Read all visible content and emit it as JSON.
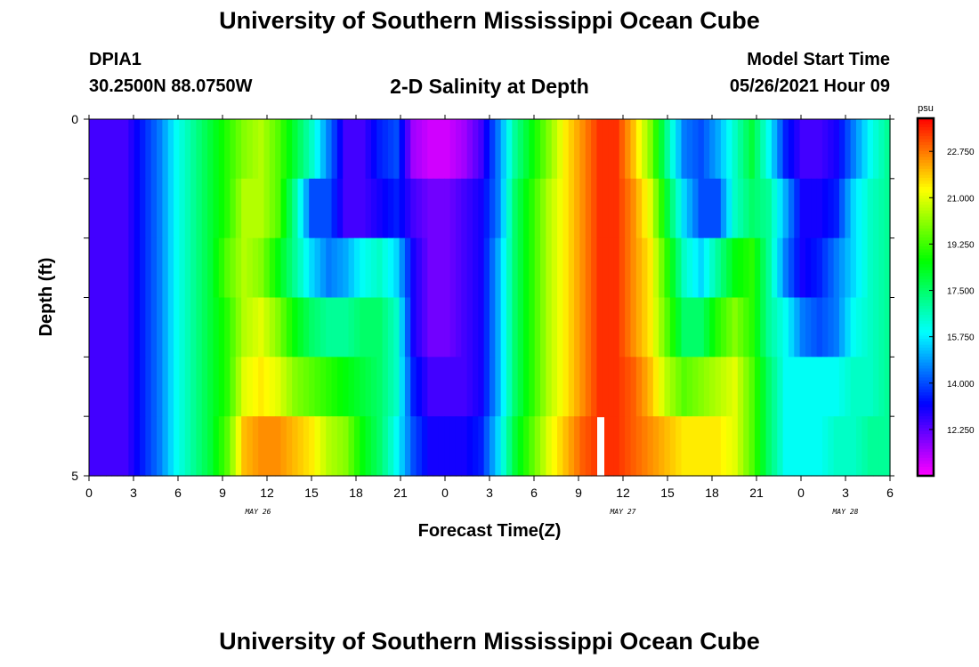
{
  "header": {
    "title": "University of Southern Mississippi Ocean Cube",
    "station": "DPIA1",
    "coords": "30.2500N  88.0750W",
    "subtitle": "2-D Salinity at Depth",
    "model_start_label": "Model Start Time",
    "model_start_value": "05/26/2021 Hour 09"
  },
  "footer": {
    "title": "University of Southern Mississippi Ocean Cube"
  },
  "chart_data": {
    "type": "heatmap",
    "xlabel": "Forecast Time(Z)",
    "ylabel": "Depth (ft)",
    "x_tick_labels": [
      "0",
      "3",
      "6",
      "9",
      "12",
      "15",
      "18",
      "21",
      "0",
      "3",
      "6",
      "9",
      "12",
      "15",
      "18",
      "21",
      "0",
      "3",
      "6"
    ],
    "day_labels": [
      "MAY 26",
      "MAY 27",
      "MAY 28"
    ],
    "y_tick_labels": [
      "0",
      "5"
    ],
    "ylim": [
      0,
      5
    ],
    "colorbar": {
      "unit": "psu",
      "range": [
        10.5,
        24.0
      ],
      "tick_labels": [
        "22.750",
        "21.000",
        "19.250",
        "17.500",
        "15.750",
        "14.000",
        "12.250"
      ],
      "tick_values": [
        22.75,
        21.0,
        19.25,
        17.5,
        15.75,
        14.0,
        12.25
      ]
    },
    "x_hours_step": 3,
    "depth_layers": 5,
    "rows_salinity": [
      [
        12.5,
        12.5,
        12.5,
        13.5,
        14.5,
        16.0,
        17.0,
        18.0,
        19.0,
        20.0,
        20.5,
        19.5,
        18.0,
        16.5,
        14.5,
        12.5,
        12.5,
        13.5,
        14.0,
        11.5,
        11.0,
        11.0,
        11.5,
        12.5,
        14.5,
        17.0,
        18.5,
        20.0,
        21.5,
        22.5,
        23.5,
        23.5,
        22.0,
        20.0,
        17.0,
        14.5,
        14.0,
        15.0,
        16.5,
        18.0,
        16.0,
        13.5,
        12.5,
        12.5,
        13.0,
        14.5,
        16.0,
        17.0
      ],
      [
        12.5,
        12.5,
        12.5,
        13.5,
        14.5,
        16.0,
        17.0,
        18.0,
        19.0,
        20.5,
        20.5,
        19.5,
        17.0,
        14.0,
        14.0,
        12.5,
        12.5,
        13.0,
        13.5,
        12.5,
        12.0,
        12.0,
        12.5,
        13.0,
        14.5,
        17.5,
        19.0,
        20.5,
        21.5,
        22.5,
        23.5,
        23.5,
        22.5,
        21.0,
        18.0,
        15.5,
        14.0,
        14.0,
        16.5,
        17.5,
        17.0,
        15.0,
        13.0,
        13.0,
        13.5,
        15.5,
        16.5,
        17.0
      ],
      [
        12.5,
        12.5,
        12.5,
        13.5,
        14.5,
        16.0,
        17.0,
        18.0,
        19.5,
        20.5,
        20.0,
        18.5,
        17.0,
        15.5,
        14.5,
        15.0,
        16.0,
        16.5,
        15.5,
        13.0,
        12.0,
        12.0,
        12.5,
        13.0,
        15.0,
        17.5,
        19.0,
        20.5,
        21.5,
        22.5,
        23.5,
        23.5,
        22.5,
        21.5,
        19.0,
        16.5,
        15.5,
        17.0,
        18.5,
        19.0,
        17.0,
        14.5,
        13.0,
        13.5,
        14.5,
        15.5,
        16.5,
        17.0
      ],
      [
        12.5,
        12.5,
        12.5,
        13.5,
        14.5,
        16.0,
        17.0,
        18.0,
        19.0,
        20.5,
        21.0,
        20.0,
        18.5,
        17.5,
        17.0,
        17.0,
        17.5,
        17.5,
        16.5,
        13.0,
        12.0,
        12.0,
        12.5,
        13.0,
        15.0,
        17.5,
        19.0,
        20.5,
        21.5,
        22.5,
        23.5,
        23.5,
        22.5,
        21.5,
        19.5,
        17.5,
        17.5,
        19.0,
        20.0,
        19.0,
        17.0,
        16.0,
        14.5,
        14.0,
        14.5,
        16.0,
        16.5,
        17.0
      ],
      [
        12.5,
        12.5,
        12.5,
        13.5,
        14.5,
        16.0,
        17.0,
        18.0,
        19.0,
        21.0,
        21.5,
        21.0,
        20.0,
        19.5,
        19.0,
        18.5,
        18.0,
        17.5,
        16.5,
        13.5,
        12.5,
        12.5,
        12.5,
        13.0,
        15.0,
        17.5,
        19.0,
        20.5,
        21.5,
        22.5,
        23.5,
        23.5,
        23.0,
        22.0,
        20.5,
        19.5,
        20.0,
        20.5,
        21.0,
        19.5,
        17.5,
        16.0,
        16.0,
        16.0,
        16.0,
        16.5,
        16.5,
        17.0
      ],
      [
        12.5,
        12.5,
        12.5,
        13.5,
        14.5,
        16.0,
        17.0,
        18.0,
        19.5,
        22.0,
        22.5,
        22.5,
        22.0,
        21.5,
        20.5,
        20.0,
        18.5,
        17.5,
        16.0,
        14.0,
        13.0,
        13.0,
        13.0,
        13.5,
        15.5,
        18.0,
        19.5,
        21.0,
        22.0,
        23.0,
        23.5,
        23.5,
        23.0,
        22.5,
        22.0,
        21.5,
        21.5,
        21.5,
        21.0,
        19.5,
        17.5,
        16.0,
        16.0,
        16.0,
        16.5,
        16.5,
        17.0,
        17.0
      ]
    ]
  }
}
